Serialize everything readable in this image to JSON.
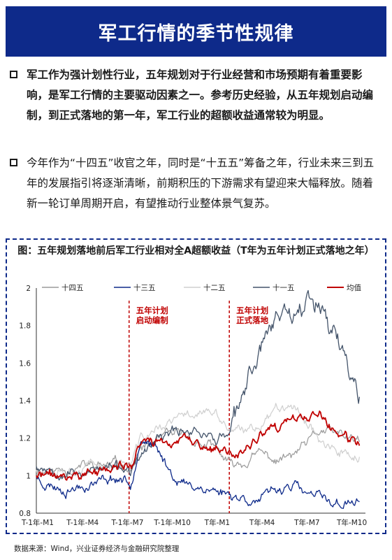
{
  "header": {
    "title": "军工行情的季节性规律"
  },
  "bullets": [
    {
      "text": "军工作为强计划性行业，五年规划对于行业经营和市场预期有着重要影响，是军工行情的主要驱动因素之一。参考历史经验，从五年规划启动编制，到正式落地的第一年，军工行业的超额收益通常较为明显。"
    },
    {
      "text": "今年作为“十四五”收官之年，同时是“十五五”筹备之年，行业未来三到五年的发展指引将逐渐清晰，前期积压的下游需求有望迎来大幅释放。随着新一轮订单周期开启，有望推动行业整体景气复苏。"
    }
  ],
  "chart_title": "图：五年规划落地前后军工行业相对全A超额收益（T年为五年计划正式落地之年）",
  "source": "数据来源：Wind，兴业证券经济与金融研究院整理",
  "chart_data": {
    "type": "line",
    "title": "图：五年规划落地前后军工行业相对全A超额收益（T年为五年计划正式落地之年）",
    "x_ticks": [
      "T-1年-M1",
      "T-1年-M4",
      "T-1年-M7",
      "T-1年-M10",
      "T年-M1",
      "T年-M4",
      "T年-M7",
      "T年-M10"
    ],
    "x_range": [
      1,
      23
    ],
    "ylim": [
      0.8,
      2.0
    ],
    "y_ticks": [
      "0.8",
      "1",
      "1.2",
      "1.4",
      "1.6",
      "1.8",
      "2"
    ],
    "legend_position": "top",
    "grid": false,
    "annotations": [
      {
        "x": 7.2,
        "text_lines": [
          "五年计划",
          "启动编制"
        ],
        "color": "#c00000"
      },
      {
        "x": 13.9,
        "text_lines": [
          "五年计划",
          "正式落地"
        ],
        "color": "#c00000"
      }
    ],
    "series": [
      {
        "name": "十四五",
        "color": "#9a9a9a",
        "width": 1.2,
        "seed": 11,
        "x": [
          1,
          2,
          3,
          4,
          5,
          6,
          7,
          7.3,
          8,
          9,
          10,
          11,
          12,
          13,
          14,
          15,
          16,
          17,
          18,
          19,
          20,
          21,
          22.6
        ],
        "y": [
          1.03,
          1.02,
          1.04,
          1.05,
          1.05,
          1.06,
          1.06,
          1.04,
          1.14,
          1.18,
          1.21,
          1.21,
          1.17,
          1.14,
          1.05,
          1.07,
          1.12,
          1.08,
          1.1,
          1.16,
          1.24,
          1.22,
          1.18
        ]
      },
      {
        "name": "十三五",
        "color": "#0e2a8a",
        "width": 1.3,
        "seed": 23,
        "x": [
          1,
          2,
          3,
          4,
          5,
          6,
          7,
          7.3,
          8,
          9,
          10,
          11,
          12,
          13,
          14,
          15,
          16,
          17,
          18,
          19,
          20,
          21,
          22.6
        ],
        "y": [
          0.99,
          0.95,
          0.93,
          0.95,
          0.97,
          0.99,
          0.98,
          0.95,
          1.22,
          1.13,
          1.02,
          0.95,
          0.94,
          0.92,
          0.9,
          0.88,
          0.87,
          0.91,
          0.96,
          0.9,
          0.88,
          0.85,
          0.86
        ]
      },
      {
        "name": "十二五",
        "color": "#cfcfcf",
        "width": 1.2,
        "seed": 37,
        "x": [
          1,
          2,
          3,
          4,
          5,
          6,
          7,
          7.3,
          8,
          9,
          10,
          11,
          12,
          13,
          14,
          15,
          16,
          17,
          18,
          19,
          20,
          21,
          22.6
        ],
        "y": [
          1.03,
          1.05,
          1.04,
          1.05,
          1.05,
          1.06,
          1.07,
          1.05,
          1.2,
          1.24,
          1.28,
          1.32,
          1.35,
          1.32,
          1.24,
          1.22,
          1.28,
          1.36,
          1.4,
          1.3,
          1.2,
          1.12,
          1.1
        ]
      },
      {
        "name": "十一五",
        "color": "#44546a",
        "width": 1.3,
        "seed": 53,
        "x": [
          1,
          2,
          3,
          4,
          5,
          6,
          7,
          7.3,
          8,
          9,
          10,
          11,
          12,
          13,
          14,
          15,
          16,
          17,
          18,
          19,
          20,
          21,
          22.6
        ],
        "y": [
          1.05,
          1.04,
          1.03,
          1.02,
          1.03,
          1.04,
          1.04,
          1.0,
          1.1,
          1.18,
          1.22,
          1.25,
          1.24,
          1.2,
          1.22,
          1.45,
          1.7,
          1.85,
          1.9,
          1.93,
          1.95,
          1.75,
          1.42
        ]
      },
      {
        "name": "均值",
        "color": "#c00000",
        "width": 1.8,
        "seed": 71,
        "x": [
          1,
          2,
          3,
          4,
          5,
          6,
          7,
          7.3,
          8,
          9,
          10,
          11,
          12,
          13,
          14,
          15,
          16,
          17,
          18,
          19,
          20,
          21,
          22.6
        ],
        "y": [
          1.0,
          1.0,
          0.99,
          1.01,
          1.02,
          1.04,
          1.05,
          1.03,
          1.18,
          1.18,
          1.18,
          1.18,
          1.16,
          1.13,
          1.11,
          1.14,
          1.21,
          1.24,
          1.28,
          1.31,
          1.32,
          1.22,
          1.16
        ]
      }
    ]
  }
}
